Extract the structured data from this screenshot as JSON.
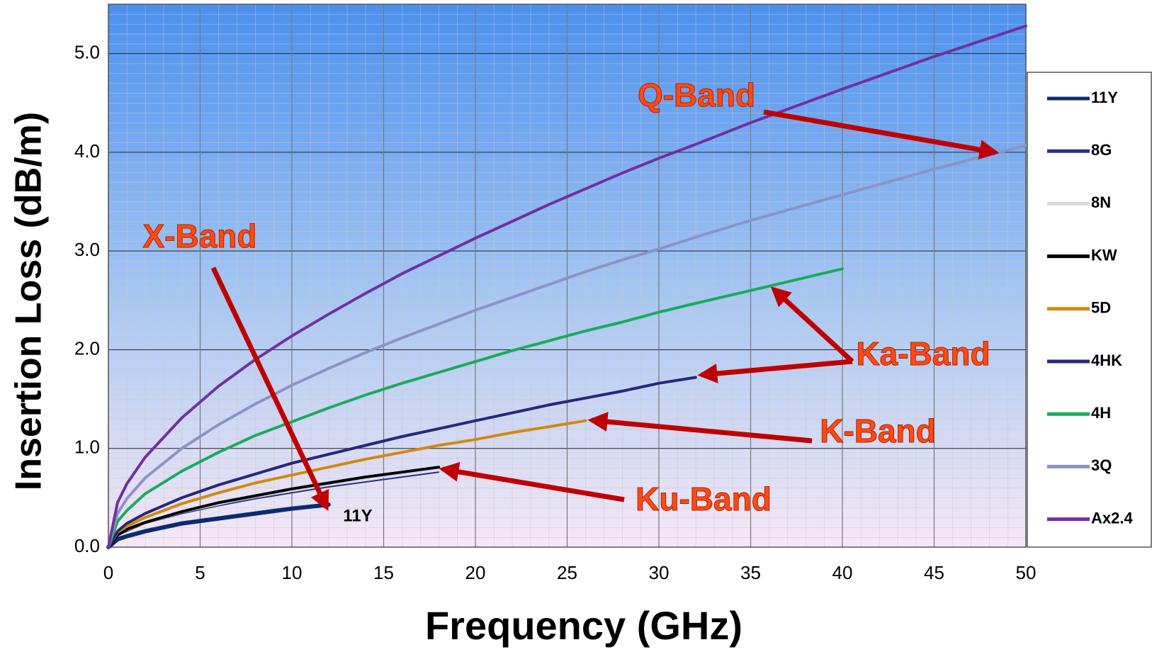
{
  "chart_data": {
    "type": "line",
    "x_label": "Frequency (GHz)",
    "y_label": "Insertion Loss (dB/m)",
    "xlim": [
      0,
      50
    ],
    "xticks": [
      0,
      5,
      10,
      15,
      20,
      25,
      30,
      35,
      40,
      45,
      50
    ],
    "ylim": [
      0,
      5.5
    ],
    "yticks": [
      {
        "value": 0,
        "label": "0.0"
      },
      {
        "value": 1,
        "label": "1.0"
      },
      {
        "value": 2,
        "label": "2.0"
      },
      {
        "value": 3,
        "label": "3.0"
      },
      {
        "value": 4,
        "label": "4.0"
      },
      {
        "value": 5,
        "label": "5.0"
      }
    ],
    "grid": true,
    "legend": "right",
    "series": [
      {
        "name": "11Y",
        "color": "#0d2a6e",
        "x": [
          0,
          0.5,
          1,
          2,
          4,
          6,
          8,
          10,
          12
        ],
        "values": [
          0,
          0.08,
          0.11,
          0.16,
          0.24,
          0.29,
          0.34,
          0.39,
          0.43
        ]
      },
      {
        "name": "8G",
        "color": "#2b2f85",
        "x": [
          0,
          0.5,
          1,
          2,
          4,
          6,
          8,
          10,
          12,
          14,
          16,
          18
        ],
        "values": [
          0,
          0.12,
          0.16,
          0.24,
          0.34,
          0.42,
          0.49,
          0.55,
          0.61,
          0.66,
          0.71,
          0.76
        ]
      },
      {
        "name": "8N",
        "color": "#d9d9d9",
        "x": [
          0,
          0.5,
          1,
          2,
          4,
          6,
          8,
          10,
          12,
          14,
          16,
          18
        ],
        "values": [
          0,
          0.12,
          0.17,
          0.24,
          0.35,
          0.43,
          0.51,
          0.57,
          0.63,
          0.69,
          0.74,
          0.79
        ]
      },
      {
        "name": "KW",
        "color": "#000000",
        "x": [
          0,
          0.5,
          1,
          2,
          4,
          6,
          8,
          10,
          12,
          14,
          16,
          18
        ],
        "values": [
          0,
          0.12,
          0.18,
          0.25,
          0.36,
          0.45,
          0.52,
          0.59,
          0.65,
          0.71,
          0.76,
          0.81
        ]
      },
      {
        "name": "5D",
        "color": "#d08a10",
        "x": [
          0,
          0.5,
          1,
          2,
          4,
          6,
          8,
          10,
          12,
          14,
          16,
          18,
          20,
          22,
          24,
          26
        ],
        "values": [
          0,
          0.15,
          0.21,
          0.3,
          0.44,
          0.55,
          0.65,
          0.73,
          0.81,
          0.89,
          0.96,
          1.03,
          1.09,
          1.16,
          1.22,
          1.28
        ]
      },
      {
        "name": "4HK",
        "color": "#26287a",
        "x": [
          0,
          0.5,
          1,
          2,
          4,
          6,
          8,
          10,
          12,
          14,
          16,
          18,
          20,
          22,
          24,
          26,
          28,
          30,
          32
        ],
        "values": [
          0,
          0.16,
          0.24,
          0.34,
          0.5,
          0.63,
          0.74,
          0.85,
          0.94,
          1.03,
          1.12,
          1.2,
          1.28,
          1.36,
          1.44,
          1.51,
          1.58,
          1.66,
          1.72
        ]
      },
      {
        "name": "4H",
        "color": "#1aab5c",
        "x": [
          0,
          0.5,
          1,
          2,
          4,
          6,
          8,
          10,
          12,
          14,
          16,
          18,
          20,
          22,
          24,
          26,
          28,
          30,
          32,
          35,
          40
        ],
        "values": [
          0,
          0.26,
          0.37,
          0.54,
          0.77,
          0.96,
          1.13,
          1.27,
          1.41,
          1.54,
          1.66,
          1.77,
          1.88,
          1.99,
          2.09,
          2.19,
          2.28,
          2.38,
          2.47,
          2.6,
          2.82
        ]
      },
      {
        "name": "3Q",
        "color": "#8b93c6",
        "x": [
          0,
          0.5,
          1,
          2,
          4,
          6,
          8,
          10,
          12,
          14,
          16,
          18,
          20,
          22,
          24,
          26,
          28,
          30,
          32,
          35,
          40,
          45,
          50
        ],
        "values": [
          0,
          0.34,
          0.49,
          0.7,
          1.0,
          1.24,
          1.45,
          1.64,
          1.81,
          1.97,
          2.12,
          2.26,
          2.4,
          2.53,
          2.66,
          2.79,
          2.91,
          3.02,
          3.14,
          3.31,
          3.57,
          3.83,
          4.07
        ]
      },
      {
        "name": "Ax2.4",
        "color": "#7030a0",
        "x": [
          0,
          0.5,
          1,
          2,
          4,
          6,
          8,
          10,
          12,
          14,
          16,
          18,
          20,
          22,
          24,
          26,
          28,
          30,
          32,
          35,
          40,
          45,
          50
        ],
        "values": [
          0,
          0.45,
          0.64,
          0.91,
          1.31,
          1.63,
          1.9,
          2.14,
          2.36,
          2.57,
          2.77,
          2.95,
          3.13,
          3.3,
          3.47,
          3.63,
          3.79,
          3.94,
          4.08,
          4.3,
          4.64,
          4.97,
          5.28
        ]
      }
    ],
    "annotations": [
      "Q-Band",
      "X-Band",
      "Ka-Band",
      "K-Band",
      "Ku-Band",
      "11Y"
    ]
  }
}
